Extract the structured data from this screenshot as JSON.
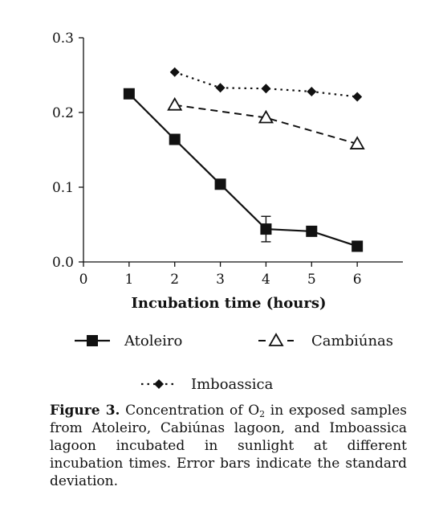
{
  "chart_data": {
    "type": "line",
    "xlabel": "Incubation time (hours)",
    "ylabel": "",
    "xlim": [
      0,
      7
    ],
    "ylim": [
      0,
      0.3
    ],
    "x_ticks": [
      "0",
      "1",
      "2",
      "3",
      "4",
      "5",
      "6"
    ],
    "y_ticks": [
      "0.0",
      "0.1",
      "0.2",
      "0.3"
    ],
    "grid": false,
    "legend_position": "bottom",
    "series": [
      {
        "name": "Atoleiro",
        "marker": "square-filled",
        "line": "solid",
        "x": [
          1,
          2,
          3,
          4,
          5,
          6
        ],
        "y": [
          0.225,
          0.164,
          0.104,
          0.044,
          0.041,
          0.021
        ],
        "error": [
          0,
          0,
          0,
          0.017,
          0,
          0
        ]
      },
      {
        "name": "Cambiúnas",
        "marker": "triangle-open",
        "line": "dashed",
        "x": [
          2,
          4,
          6
        ],
        "y": [
          0.21,
          0.193,
          0.158
        ],
        "error": [
          0,
          0,
          0
        ]
      },
      {
        "name": "Imboassica",
        "marker": "diamond-filled",
        "line": "dotted",
        "x": [
          2,
          3,
          4,
          5,
          6
        ],
        "y": [
          0.254,
          0.233,
          0.232,
          0.228,
          0.221
        ],
        "error": [
          0,
          0,
          0,
          0,
          0
        ]
      }
    ]
  },
  "caption": {
    "label": "Figure 3.",
    "text_before_sub": " Concentration of O",
    "sub": "2",
    "text_after_sub": " in exposed samples from Atoleiro, Cabiúnas lagoon, and Imboassica lagoon incubated in sunlight at different incubation times. Error bars indicate the standard deviation."
  }
}
